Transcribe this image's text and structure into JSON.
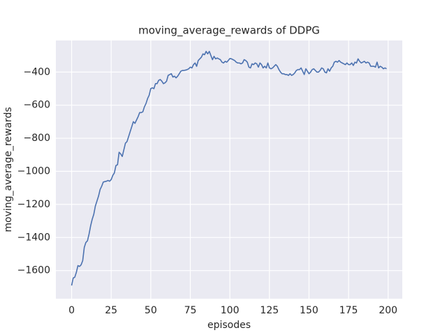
{
  "chart_data": {
    "type": "line",
    "title": "moving_average_rewards of DDPG",
    "x_label": "episodes",
    "y_label": "moving_average_rewards",
    "x": [
      0,
      1,
      2,
      3,
      4,
      5,
      6,
      7,
      8,
      9,
      10,
      11,
      12,
      13,
      14,
      15,
      16,
      17,
      18,
      19,
      20,
      21,
      22,
      23,
      24,
      25,
      26,
      27,
      28,
      29,
      30,
      31,
      32,
      33,
      34,
      35,
      36,
      37,
      38,
      39,
      40,
      41,
      42,
      43,
      44,
      45,
      46,
      47,
      48,
      49,
      50,
      51,
      52,
      53,
      54,
      55,
      56,
      57,
      58,
      59,
      60,
      61,
      62,
      63,
      64,
      65,
      66,
      67,
      68,
      69,
      70,
      71,
      72,
      73,
      74,
      75,
      76,
      77,
      78,
      79,
      80,
      81,
      82,
      83,
      84,
      85,
      86,
      87,
      88,
      89,
      90,
      91,
      92,
      93,
      94,
      95,
      96,
      97,
      98,
      99,
      100,
      101,
      102,
      103,
      104,
      105,
      106,
      107,
      108,
      109,
      110,
      111,
      112,
      113,
      114,
      115,
      116,
      117,
      118,
      119,
      120,
      121,
      122,
      123,
      124,
      125,
      126,
      127,
      128,
      129,
      130,
      131,
      132,
      133,
      134,
      135,
      136,
      137,
      138,
      139,
      140,
      141,
      142,
      143,
      144,
      145,
      146,
      147,
      148,
      149,
      150,
      151,
      152,
      153,
      154,
      155,
      156,
      157,
      158,
      159,
      160,
      161,
      162,
      163,
      164,
      165,
      166,
      167,
      168,
      169,
      170,
      171,
      172,
      173,
      174,
      175,
      176,
      177,
      178,
      179,
      180,
      181,
      182,
      183,
      184,
      185,
      186,
      187,
      188,
      189,
      190,
      191,
      192,
      193,
      194,
      195,
      196,
      197,
      198,
      199
    ],
    "series": [
      {
        "color": "#4c72b0",
        "values": [
          -1690,
          -1645,
          -1640,
          -1610,
          -1570,
          -1575,
          -1565,
          -1540,
          -1460,
          -1430,
          -1420,
          -1380,
          -1330,
          -1290,
          -1260,
          -1210,
          -1180,
          -1150,
          -1110,
          -1090,
          -1065,
          -1062,
          -1060,
          -1055,
          -1060,
          -1050,
          -1025,
          -1010,
          -965,
          -960,
          -885,
          -895,
          -910,
          -870,
          -830,
          -820,
          -790,
          -760,
          -730,
          -700,
          -710,
          -690,
          -670,
          -645,
          -645,
          -640,
          -610,
          -590,
          -560,
          -540,
          -500,
          -495,
          -500,
          -470,
          -470,
          -450,
          -445,
          -455,
          -470,
          -465,
          -455,
          -420,
          -415,
          -410,
          -430,
          -425,
          -435,
          -425,
          -410,
          -395,
          -390,
          -390,
          -388,
          -385,
          -380,
          -370,
          -375,
          -355,
          -345,
          -365,
          -330,
          -320,
          -310,
          -290,
          -295,
          -275,
          -290,
          -275,
          -300,
          -325,
          -305,
          -320,
          -315,
          -320,
          -325,
          -340,
          -345,
          -335,
          -340,
          -330,
          -318,
          -320,
          -325,
          -330,
          -340,
          -345,
          -345,
          -350,
          -345,
          -325,
          -330,
          -340,
          -370,
          -375,
          -350,
          -355,
          -345,
          -350,
          -370,
          -345,
          -355,
          -375,
          -365,
          -375,
          -345,
          -375,
          -380,
          -375,
          -365,
          -355,
          -365,
          -385,
          -400,
          -410,
          -410,
          -415,
          -415,
          -420,
          -410,
          -420,
          -415,
          -405,
          -390,
          -385,
          -385,
          -375,
          -395,
          -415,
          -380,
          -395,
          -410,
          -400,
          -385,
          -380,
          -390,
          -400,
          -400,
          -390,
          -375,
          -380,
          -400,
          -405,
          -380,
          -395,
          -375,
          -365,
          -340,
          -335,
          -340,
          -330,
          -340,
          -345,
          -350,
          -355,
          -345,
          -355,
          -355,
          -345,
          -360,
          -340,
          -345,
          -320,
          -335,
          -345,
          -340,
          -335,
          -345,
          -340,
          -345,
          -365,
          -365,
          -365,
          -370,
          -340,
          -375,
          -365,
          -370,
          -380,
          -375,
          -380
        ]
      }
    ],
    "xlim": [
      -9.95,
      208.95
    ],
    "ylim": [
      -1770,
      -209
    ],
    "xticks": [
      0,
      25,
      50,
      75,
      100,
      125,
      150,
      175,
      200
    ],
    "yticks": [
      {
        "value": -1600,
        "label": "−1600"
      },
      {
        "value": -1400,
        "label": "−1400"
      },
      {
        "value": -1200,
        "label": "−1200"
      },
      {
        "value": -1000,
        "label": "−1000"
      },
      {
        "value": -800,
        "label": "−800"
      },
      {
        "value": -600,
        "label": "−600"
      },
      {
        "value": -400,
        "label": "−400"
      }
    ],
    "grid": true
  }
}
